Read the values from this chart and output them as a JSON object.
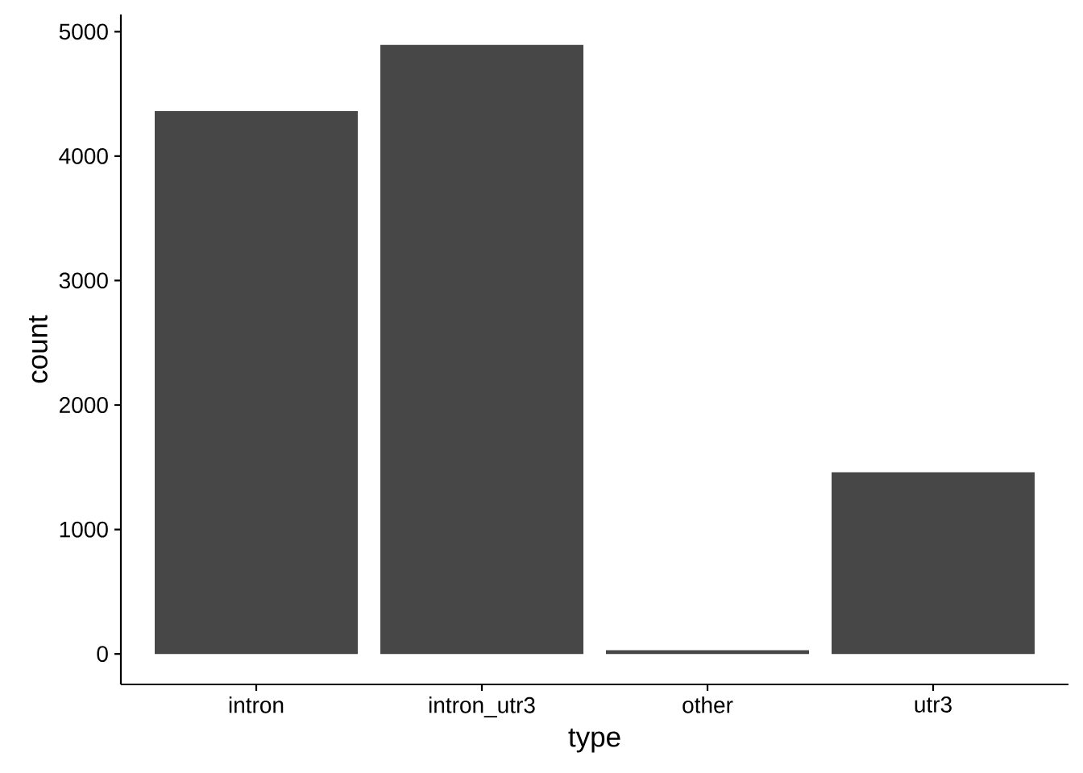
{
  "chart_data": {
    "type": "bar",
    "xlabel": "type",
    "ylabel": "count",
    "categories": [
      "intron",
      "intron_utr3",
      "other",
      "utr3"
    ],
    "values": [
      4362,
      4893,
      30,
      1460
    ],
    "color": "#474747",
    "ylim": [
      -245,
      5138
    ],
    "yticks": [
      0,
      1000,
      2000,
      3000,
      4000,
      5000
    ]
  }
}
